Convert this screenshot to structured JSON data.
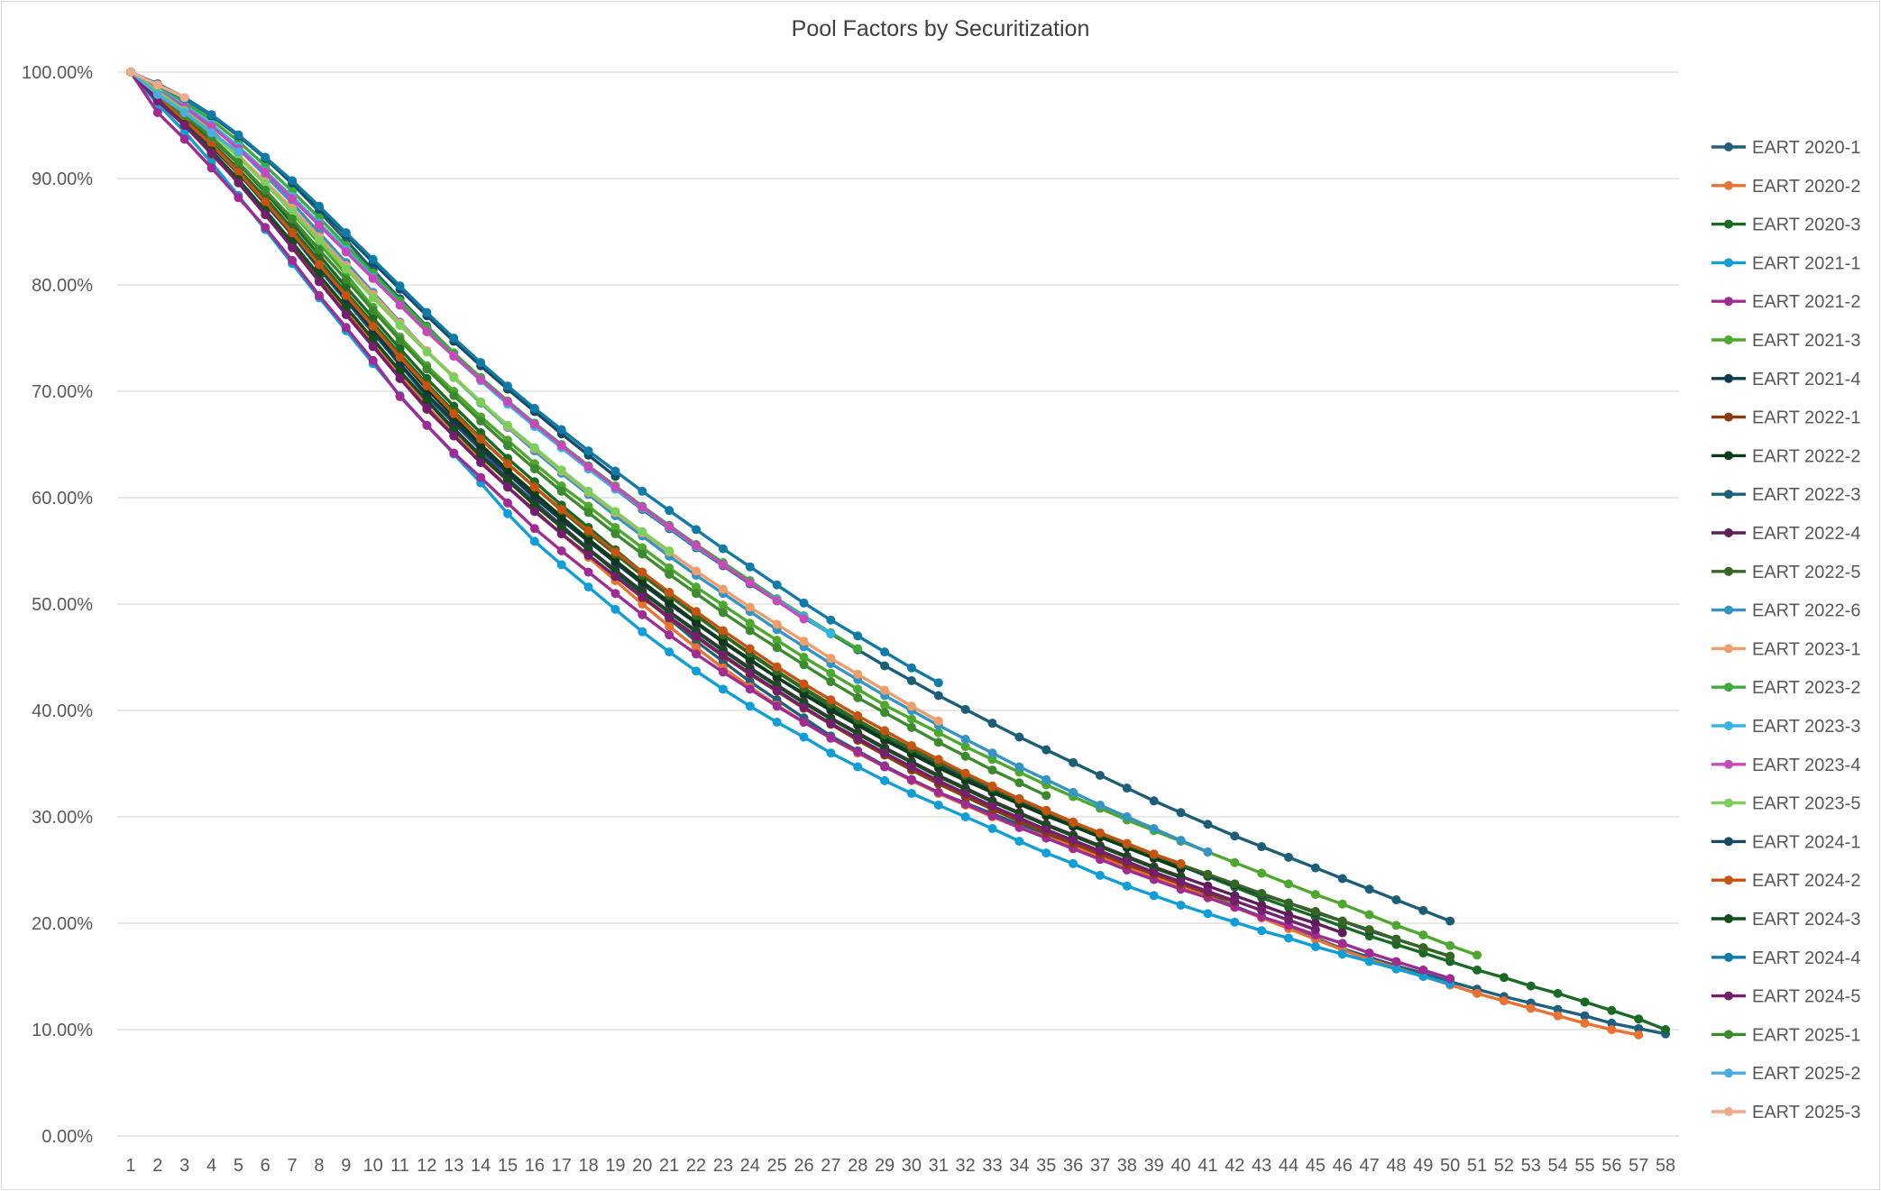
{
  "chart_data": {
    "type": "line",
    "title": "Pool Factors by Securitization",
    "xlabel": "",
    "ylabel": "",
    "ylim": [
      0,
      100
    ],
    "y_ticks": [
      "0.00%",
      "10.00%",
      "20.00%",
      "30.00%",
      "40.00%",
      "50.00%",
      "60.00%",
      "70.00%",
      "80.00%",
      "90.00%",
      "100.00%"
    ],
    "x_categories": [
      "1",
      "2",
      "3",
      "4",
      "5",
      "6",
      "7",
      "8",
      "9",
      "10",
      "11",
      "12",
      "13",
      "14",
      "15",
      "16",
      "17",
      "18",
      "19",
      "20",
      "21",
      "22",
      "23",
      "24",
      "25",
      "26",
      "27",
      "28",
      "29",
      "30",
      "31",
      "32",
      "33",
      "34",
      "35",
      "36",
      "37",
      "38",
      "39",
      "40",
      "41",
      "42",
      "43",
      "44",
      "45",
      "46",
      "47",
      "48",
      "49",
      "50",
      "51",
      "52",
      "53",
      "54",
      "55",
      "56",
      "57",
      "58"
    ],
    "grid": "horizontal",
    "legend_position": "right",
    "series": [
      {
        "name": "EART 2020-1",
        "color": "#1F5F7F",
        "values": [
          100,
          97.5,
          95.5,
          93,
          90.5,
          87.6,
          84.7,
          81.5,
          78.5,
          75.5,
          72.5,
          69.5,
          67,
          64.5,
          61.8,
          59.6,
          57.4,
          55.2,
          53,
          50.8,
          48.6,
          46.5,
          44.6,
          42.7,
          41,
          39.3,
          37.6,
          36.2,
          34.8,
          33.5,
          32.3,
          31.3,
          30.3,
          29.3,
          28.4,
          27.4,
          26.4,
          25.4,
          24.4,
          23.5,
          22.6,
          21.6,
          20.6,
          19.6,
          18.6,
          17.6,
          16.8,
          16,
          15.3,
          14.5,
          13.8,
          13.1,
          12.5,
          11.9,
          11.3,
          10.6,
          10.1,
          9.6
        ]
      },
      {
        "name": "EART 2020-2",
        "color": "#E97132",
        "values": [
          100,
          97.2,
          95,
          92.5,
          89.8,
          86.8,
          83.8,
          80.6,
          77.6,
          74.6,
          71.6,
          68.6,
          66,
          63.5,
          61,
          58.8,
          56.6,
          54.4,
          52.2,
          50,
          47.9,
          45.9,
          44,
          42.2,
          40.5,
          38.9,
          37.4,
          36,
          34.7,
          33.4,
          32.2,
          31.1,
          30,
          29,
          28.1,
          27.2,
          26.2,
          25.3,
          24.4,
          23.4,
          22.5,
          21.5,
          20.5,
          19.5,
          18.5,
          17.5,
          16.6,
          15.8,
          15,
          14.2,
          13.4,
          12.7,
          12,
          11.3,
          10.6,
          10,
          9.5
        ]
      },
      {
        "name": "EART 2020-3",
        "color": "#196B24",
        "values": [
          100,
          97.8,
          96,
          93.8,
          91.4,
          88.7,
          85.8,
          82.8,
          79.8,
          76.9,
          74,
          71.2,
          68.6,
          66.1,
          63.7,
          61.5,
          59.3,
          57.2,
          55.1,
          53,
          51,
          49,
          47.1,
          45.3,
          43.6,
          42,
          40.4,
          39,
          37.6,
          36.3,
          35.1,
          33.9,
          32.8,
          31.7,
          30.6,
          29.5,
          28.4,
          27.4,
          26.4,
          25.4,
          24.4,
          23.4,
          22.4,
          21.5,
          20.6,
          19.7,
          18.8,
          18,
          17.2,
          16.4,
          15.6,
          14.9,
          14.1,
          13.4,
          12.6,
          11.8,
          11,
          10
        ]
      },
      {
        "name": "EART 2021-1",
        "color": "#0F9ED5",
        "values": [
          100,
          97,
          94.4,
          91.5,
          88.4,
          85.2,
          82,
          78.8,
          75.7,
          72.6,
          69.6,
          66.8,
          64.1,
          61.4,
          58.5,
          55.9,
          53.7,
          51.6,
          49.5,
          47.4,
          45.5,
          43.7,
          42,
          40.4,
          38.9,
          37.5,
          36,
          34.7,
          33.4,
          32.2,
          31.1,
          30,
          28.9,
          27.7,
          26.6,
          25.6,
          24.5,
          23.5,
          22.6,
          21.7,
          20.9,
          20.1,
          19.3,
          18.6,
          17.8,
          17.1,
          16.4,
          15.7,
          15,
          14.3
        ]
      },
      {
        "name": "EART 2021-2",
        "color": "#A02B93",
        "values": [
          100,
          96.2,
          93.7,
          91,
          88.2,
          85.4,
          82.3,
          79,
          76,
          72.9,
          69.5,
          66.8,
          64.2,
          61.9,
          59.5,
          57.1,
          55,
          53,
          51,
          49,
          47.1,
          45.3,
          43.6,
          42,
          40.4,
          38.9,
          37.4,
          36.1,
          34.7,
          33.5,
          32.3,
          31.2,
          30.1,
          29,
          28,
          27,
          26,
          25,
          24.1,
          23.2,
          22.4,
          21.5,
          20.6,
          19.8,
          18.9,
          18.1,
          17.2,
          16.4,
          15.6,
          14.8
        ]
      },
      {
        "name": "EART 2021-3",
        "color": "#4EA72E",
        "values": [
          100,
          98.2,
          96.6,
          94.5,
          92.2,
          89.6,
          86.8,
          83.9,
          81,
          77.9,
          75.1,
          72.4,
          70,
          67.6,
          65.4,
          63.2,
          61.1,
          59.2,
          57.2,
          55.3,
          53.4,
          51.6,
          49.9,
          48.2,
          46.6,
          45,
          43.5,
          42,
          40.5,
          39.2,
          37.9,
          36.6,
          35.4,
          34.2,
          33,
          31.9,
          30.8,
          29.7,
          28.7,
          27.7,
          26.7,
          25.7,
          24.7,
          23.7,
          22.7,
          21.8,
          20.8,
          19.8,
          18.9,
          17.9,
          17
        ]
      },
      {
        "name": "EART 2021-4",
        "color": "#0E3B4E",
        "values": [
          100,
          97.6,
          95.4,
          93.1,
          90.5,
          87.7,
          84.8,
          81.7,
          78.7,
          75.7,
          72.6,
          69.7,
          67.2,
          64.7,
          62.3,
          60,
          57.9,
          55.9,
          53.9,
          51.9,
          50,
          48.2,
          46.4,
          44.7,
          43.1,
          41.6,
          40.1,
          38.7,
          37.3,
          36,
          34.8,
          33.6,
          32.5,
          31.4,
          30.3,
          29.3,
          28.3,
          27.3,
          26.3,
          25.4,
          24.5,
          23.6,
          22.7,
          21.9,
          21,
          20.2,
          19.3,
          18.5,
          17.7,
          16.9
        ]
      },
      {
        "name": "EART 2022-1",
        "color": "#8B3C0E",
        "values": [
          100,
          97.3,
          95,
          92.3,
          89.6,
          86.6,
          83.6,
          80.4,
          77.3,
          74.3,
          71.2,
          68.3,
          65.8,
          63.3,
          61,
          58.8,
          56.6,
          54.6,
          52.6,
          50.6,
          48.7,
          46.9,
          45.1,
          43.4,
          41.8,
          40.2,
          38.7,
          37.2,
          35.8,
          34.4,
          33.1,
          31.9,
          30.7,
          29.6,
          28.5,
          27.5,
          26.5,
          25.5,
          24.6,
          23.7,
          22.8,
          22
        ]
      },
      {
        "name": "EART 2022-2",
        "color": "#0C3C17",
        "values": [
          100,
          97.6,
          95.6,
          93.2,
          90.7,
          87.9,
          85,
          81.9,
          79,
          76,
          73.1,
          70.2,
          67.6,
          65,
          62.6,
          60.4,
          58.2,
          56.1,
          54.1,
          52.1,
          50.2,
          48.3,
          46.5,
          44.8,
          43.1,
          41.5,
          40,
          38.6,
          37.2,
          35.9,
          34.6,
          33.4,
          32.3,
          31.2,
          30.1,
          29.1,
          28.1,
          27.1,
          26.1,
          25.1
        ]
      },
      {
        "name": "EART 2022-3",
        "color": "#1B5E78",
        "values": [
          100,
          98.9,
          97.6,
          96,
          94,
          91.9,
          89.5,
          86.9,
          84.2,
          81.4,
          78.7,
          76.1,
          73.6,
          71.2,
          68.9,
          66.7,
          64.7,
          62.7,
          60.8,
          58.9,
          57.1,
          55.3,
          53.6,
          51.9,
          50.3,
          48.7,
          47.2,
          45.7,
          44.2,
          42.8,
          41.4,
          40.1,
          38.8,
          37.5,
          36.3,
          35.1,
          33.9,
          32.7,
          31.5,
          30.4,
          29.3,
          28.2,
          27.2,
          26.2,
          25.2,
          24.2,
          23.2,
          22.2,
          21.2,
          20.2
        ]
      },
      {
        "name": "EART 2022-4",
        "color": "#5E1E5A",
        "values": [
          100,
          97.5,
          95.2,
          92.6,
          89.9,
          87,
          84,
          80.9,
          77.9,
          74.9,
          71.9,
          69.1,
          66.5,
          64,
          61.7,
          59.4,
          57.3,
          55.2,
          53.2,
          51.2,
          49.3,
          47.5,
          45.7,
          44,
          42.4,
          40.8,
          39.3,
          37.9,
          36.5,
          35.2,
          33.9,
          32.7,
          31.5,
          30.4,
          29.3,
          28.3,
          27.3,
          26.3,
          25.3,
          24.4,
          23.5,
          22.6,
          21.7,
          20.8,
          20,
          19.1
        ]
      },
      {
        "name": "EART 2022-5",
        "color": "#376522",
        "values": [
          100,
          97.7,
          95.7,
          93.4,
          90.9,
          88.2,
          85.3,
          82.3,
          79.3,
          76.4,
          73.5,
          70.7,
          68.1,
          65.6,
          63.2,
          61,
          58.8,
          56.7,
          54.7,
          52.7,
          50.8,
          48.9,
          47.1,
          45.4,
          43.7,
          42.1,
          40.6,
          39.1,
          37.7,
          36.4,
          35.1,
          33.9,
          32.7,
          31.6,
          30.5,
          29.4,
          28.4,
          27.4,
          26.4,
          25.5,
          24.6,
          23.7,
          22.8,
          21.9,
          21.1,
          20.2,
          19.4,
          18.5,
          17.7,
          16.9
        ]
      },
      {
        "name": "EART 2022-6",
        "color": "#3295C4",
        "values": [
          100,
          98.4,
          96.9,
          95,
          92.8,
          90.3,
          87.7,
          84.9,
          82.1,
          79.3,
          76.5,
          73.8,
          71.3,
          68.9,
          66.6,
          64.4,
          62.3,
          60.3,
          58.3,
          56.4,
          54.5,
          52.7,
          51,
          49.3,
          47.6,
          46,
          44.4,
          42.9,
          41.4,
          40,
          38.6,
          37.3,
          36,
          34.7,
          33.5,
          32.3,
          31.1,
          30,
          28.9,
          27.8,
          26.7
        ]
      },
      {
        "name": "EART 2023-1",
        "color": "#F09D6C",
        "values": [
          100,
          98.1,
          96.4,
          94.4,
          92.2,
          89.7,
          87.2,
          84.5,
          81.8,
          79.1,
          76.4,
          73.8,
          71.4,
          69,
          66.7,
          64.6,
          62.5,
          60.5,
          58.6,
          56.7,
          54.9,
          53.1,
          51.4,
          49.7,
          48.1,
          46.5,
          44.9,
          43.4,
          41.9,
          40.4,
          39
        ]
      },
      {
        "name": "EART 2023-2",
        "color": "#3DAA3C",
        "values": [
          100,
          98.6,
          97.2,
          95.5,
          93.5,
          91.2,
          88.8,
          86.3,
          83.7,
          81.1,
          78.5,
          76,
          73.6,
          71.3,
          69.1,
          67,
          65,
          63,
          61.1,
          59.2,
          57.4,
          55.6,
          53.9,
          52.2,
          50.5,
          48.9,
          47.3,
          45.8
        ]
      },
      {
        "name": "EART 2023-3",
        "color": "#33B5E5",
        "values": [
          100,
          98.4,
          96.9,
          95.1,
          93,
          90.7,
          88.3,
          85.8,
          83.3,
          80.7,
          78.1,
          75.6,
          73.3,
          71,
          68.8,
          66.7,
          64.7,
          62.7,
          60.8,
          59,
          57.2,
          55.4,
          53.7,
          52,
          50.4,
          48.8,
          47.2
        ]
      },
      {
        "name": "EART 2023-4",
        "color": "#C849BC",
        "values": [
          100,
          98.3,
          96.7,
          94.9,
          92.8,
          90.6,
          88.1,
          85.6,
          83.1,
          80.6,
          78.1,
          75.6,
          73.3,
          71.1,
          69,
          66.9,
          64.9,
          62.9,
          61,
          59.1,
          57.3,
          55.5,
          53.7,
          52,
          50.3,
          48.6
        ]
      },
      {
        "name": "EART 2023-5",
        "color": "#7BCF5A",
        "values": [
          100,
          98.2,
          96.4,
          94.3,
          92,
          89.5,
          86.9,
          84.2,
          81.5,
          78.8,
          76.2,
          73.7,
          71.3,
          69,
          66.8,
          64.7,
          62.6,
          60.6,
          58.7,
          56.8,
          55
        ]
      },
      {
        "name": "EART 2024-1",
        "color": "#174A63",
        "values": [
          100,
          98.8,
          97.5,
          95.9,
          94,
          91.9,
          89.6,
          87.2,
          84.7,
          82.1,
          79.6,
          77.1,
          74.7,
          72.4,
          70.2,
          68.1,
          66,
          64,
          62
        ]
      },
      {
        "name": "EART 2024-2",
        "color": "#C65410",
        "values": [
          100,
          97.6,
          95.5,
          93.2,
          90.6,
          87.8,
          84.9,
          81.9,
          79,
          76.1,
          73.2,
          70.5,
          67.9,
          65.5,
          63.2,
          61,
          58.9,
          56.9,
          54.9,
          53,
          51.1,
          49.3,
          47.5,
          45.8,
          44.1,
          42.5,
          41,
          39.5,
          38.1,
          36.7,
          35.4,
          34.1,
          32.9,
          31.7,
          30.6,
          29.5,
          28.5,
          27.5,
          26.5,
          25.6
        ]
      },
      {
        "name": "EART 2024-3",
        "color": "#124E1C",
        "values": [
          100,
          97.4,
          95.1,
          92.6,
          89.9,
          87,
          84,
          80.9,
          77.9,
          74.9,
          71.9,
          69.1,
          66.4,
          63.9,
          61.6,
          59.3,
          57.2,
          55.1,
          53.1,
          51.1,
          49.2,
          47.4,
          45.6,
          43.9,
          42.3,
          40.7,
          39.2,
          37.8,
          36.4,
          35.1,
          33.8,
          32.6,
          31.4,
          30.3,
          29.2,
          28.2,
          27.2,
          26.2,
          25.2,
          24.3
        ]
      },
      {
        "name": "EART 2024-4",
        "color": "#0F7BA6",
        "values": [
          100,
          98.8,
          97.5,
          96,
          94.1,
          92,
          89.8,
          87.4,
          84.9,
          82.4,
          79.9,
          77.4,
          75,
          72.7,
          70.5,
          68.4,
          66.4,
          64.4,
          62.5,
          60.6,
          58.8,
          57,
          55.2,
          53.5,
          51.8,
          50.1,
          48.5,
          47,
          45.5,
          44,
          42.6
        ]
      },
      {
        "name": "EART 2024-5",
        "color": "#731F6E",
        "values": [
          100,
          97.3,
          95,
          92.4,
          89.6,
          86.6,
          83.5,
          80.3,
          77.2,
          74.2,
          71.2,
          68.4,
          65.8,
          63.3,
          61,
          58.7,
          56.6,
          54.6,
          52.6,
          50.7,
          48.8,
          47,
          45.2,
          43.5,
          41.9,
          40.3,
          38.8,
          37.4,
          36,
          34.7,
          33.4,
          32.2,
          31,
          29.9,
          28.8,
          27.8,
          26.8,
          25.8,
          24.8,
          23.9,
          23,
          22.1,
          21.2,
          20.3,
          19.4
        ]
      },
      {
        "name": "EART 2025-1",
        "color": "#3C8A2E",
        "values": [
          100,
          97.9,
          96,
          93.9,
          91.5,
          88.9,
          86.2,
          83.3,
          80.5,
          77.6,
          74.8,
          72.1,
          69.6,
          67.2,
          64.9,
          62.7,
          60.6,
          58.6,
          56.6,
          54.7,
          52.8,
          51,
          49.2,
          47.5,
          45.9,
          44.3,
          42.7,
          41.2,
          39.8,
          38.4,
          37,
          35.7,
          34.4,
          33.2,
          32
        ]
      },
      {
        "name": "EART 2025-2",
        "color": "#4AACDF",
        "values": [
          100,
          97.9,
          96.2,
          94.3,
          92.5
        ]
      },
      {
        "name": "EART 2025-3",
        "color": "#F2A987",
        "values": [
          100,
          98.8,
          97.6
        ]
      }
    ]
  }
}
